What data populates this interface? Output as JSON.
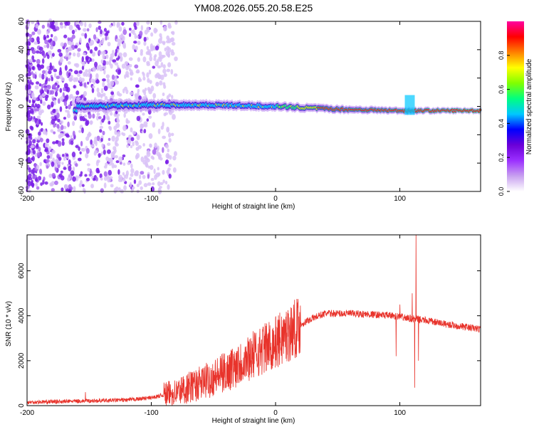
{
  "title": "YM08.2026.055.20.58.E25",
  "chart_data": [
    {
      "type": "heatmap",
      "id": "spectrogram",
      "xlabel": "Height of straight line (km)",
      "ylabel": "Frequency (Hz)",
      "xlim": [
        -200,
        165
      ],
      "ylim": [
        -60,
        60
      ],
      "xticks": [
        -200,
        -100,
        0,
        100
      ],
      "yticks": [
        -60,
        -40,
        -20,
        0,
        20,
        40,
        60
      ],
      "colorbar": {
        "label": "Normalized spectral amplitude",
        "range": [
          0.0,
          1.0
        ],
        "ticks": [
          0.0,
          0.2,
          0.4,
          0.6,
          0.8
        ],
        "tick_labels": [
          "0.0",
          "0.2",
          "0.4",
          "0.6",
          "0.8"
        ],
        "colors": [
          "#ffffff",
          "#c8a0f0",
          "#9b30ff",
          "#6a00d8",
          "#0000ff",
          "#00c8ff",
          "#00ff80",
          "#80ff00",
          "#ffff00",
          "#ff8000",
          "#ff0000",
          "#ff00a0"
        ]
      },
      "features": {
        "noise_region_x": [
          -200,
          -80
        ],
        "signal_band_start_x": -162,
        "signal_band_center_hz": [
          [
            -160,
            0
          ],
          [
            -100,
            1
          ],
          [
            -50,
            1
          ],
          [
            0,
            0
          ],
          [
            50,
            -2
          ],
          [
            100,
            -3
          ],
          [
            165,
            -3
          ]
        ],
        "spike_x": [
          104,
          112
        ]
      }
    },
    {
      "type": "line",
      "id": "snr",
      "xlabel": "Height of straight line (km)",
      "ylabel": "SNR (10 * v/v)",
      "xlim": [
        -200,
        165
      ],
      "ylim": [
        0,
        7600
      ],
      "xticks": [
        -200,
        -100,
        0,
        100
      ],
      "yticks": [
        0,
        2000,
        4000,
        6000
      ],
      "color": "#e8332b",
      "series": [
        {
          "name": "SNR",
          "envelope_x": [
            -200,
            -160,
            -120,
            -100,
            -80,
            -60,
            -40,
            -20,
            0,
            10,
            20,
            30,
            40,
            60,
            80,
            95,
            105,
            112,
            120,
            140,
            165
          ],
          "envelope_y": [
            150,
            200,
            250,
            350,
            600,
            1000,
            1500,
            2200,
            2800,
            3200,
            3600,
            3900,
            4100,
            4100,
            4050,
            4000,
            3900,
            3850,
            3800,
            3600,
            3400
          ],
          "spikes": [
            [
              -153,
              600
            ],
            [
              -30,
              2600
            ],
            [
              -35,
              2500
            ],
            [
              -20,
              3000
            ],
            [
              -10,
              3500
            ],
            [
              100,
              4500
            ],
            [
              97,
              2200
            ],
            [
              110,
              5000
            ],
            [
              113,
              7600
            ],
            [
              112,
              800
            ],
            [
              115,
              2000
            ]
          ]
        }
      ]
    }
  ]
}
